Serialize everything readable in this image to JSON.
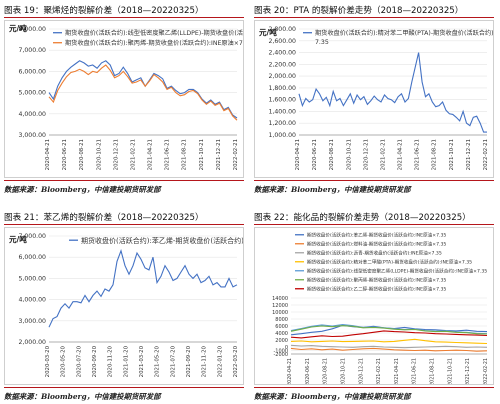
{
  "panels": [
    {
      "title": "图表 19：聚烯烃的裂解价差（2018—20220325）",
      "source": "数据来源：Bloomberg，中信建投期货研发部"
    },
    {
      "title": "图表 20：PTA 的裂解价差走势（2018—20220325）",
      "source": "数据来源：Bloomberg，中信建投期货研发部"
    },
    {
      "title": "图表 21：苯乙烯的裂解价差（2018—20220325）",
      "source": "数据来源：Bloomberg，中信建投期货研发部"
    },
    {
      "title": "图表 22：能化品的裂解价差走势（2018—20220325）",
      "source": "数据来源：Bloomberg，中信建投期货研发部"
    }
  ],
  "chart_data": [
    {
      "type": "line",
      "ylabel": "元/吨",
      "ylim": [
        3000,
        8000
      ],
      "yticks": [
        "8,000.00",
        "7,000.00",
        "6,000.00",
        "5,000.00",
        "4,000.00",
        "3,000.00"
      ],
      "xticks": [
        "2020-04-21",
        "2020-06-21",
        "2020-08-21",
        "2020-10-21",
        "2020-12-21",
        "2021-02-21",
        "2021-04-21",
        "2021-06-21",
        "2021-08-21",
        "2021-10-21",
        "2021-12-21",
        "2022-02-21"
      ],
      "series": [
        {
          "name": "期货收盘价(活跃合约):线型低密度聚乙烯(LLDPE)-期货收盘价(活跃合约):INE原油×7.35",
          "color": "#4472c4",
          "values": [
            5000,
            4700,
            5300,
            5700,
            6000,
            6200,
            6350,
            6500,
            6400,
            6250,
            6300,
            6150,
            6400,
            6500,
            6300,
            5800,
            5900,
            6200,
            5900,
            5500,
            5600,
            5700,
            5300,
            5600,
            5900,
            5800,
            5650,
            5200,
            5300,
            5100,
            4950,
            5000,
            5150,
            5150,
            5000,
            4700,
            4500,
            4650,
            4450,
            4550,
            4200,
            4300,
            3950,
            3800
          ]
        },
        {
          "name": "期货收盘价(活跃合约):聚丙烯-期货收盘价(活跃合约):INE原油×7.35",
          "color": "#ed7d31",
          "values": [
            4800,
            4550,
            5100,
            5450,
            5750,
            5950,
            6000,
            6100,
            6000,
            5850,
            6000,
            5950,
            6150,
            6300,
            6050,
            5700,
            5800,
            6000,
            5750,
            5450,
            5500,
            5600,
            5300,
            5550,
            5850,
            5700,
            5500,
            5150,
            5250,
            5000,
            4850,
            4900,
            5050,
            5100,
            4950,
            4650,
            4450,
            4600,
            4400,
            4500,
            4150,
            4250,
            3900,
            3700
          ]
        }
      ]
    },
    {
      "type": "line",
      "ylabel": "元/吨",
      "ylim": [
        1000,
        2800
      ],
      "yticks": [
        "2,800.00",
        "2,600.00",
        "2,400.00",
        "2,200.00",
        "2,000.00",
        "1,800.00",
        "1,600.00",
        "1,400.00",
        "1,200.00",
        "1,000.00"
      ],
      "xticks": [
        "2020-04-21",
        "2020-06-21",
        "2020-08-21",
        "2020-10-21",
        "2020-12-21",
        "2021-02-21",
        "2021-04-21",
        "2021-06-21",
        "2021-08-21",
        "2021-10-21",
        "2021-12-21",
        "2022-02-21"
      ],
      "series": [
        {
          "name": "期货收盘价(活跃合约):精对苯二甲酸(PTA)-期货收盘价(活跃合约):INE原油×7.35",
          "color": "#4472c4",
          "values": [
            1700,
            1500,
            1620,
            1560,
            1600,
            1780,
            1700,
            1580,
            1640,
            1500,
            1740,
            1580,
            1620,
            1500,
            1600,
            1700,
            1540,
            1680,
            1600,
            1650,
            1520,
            1580,
            1660,
            1600,
            1560,
            1680,
            1620,
            1600,
            1550,
            1650,
            1700,
            1560,
            1620,
            1900,
            2150,
            2400,
            1900,
            1650,
            1700,
            1560,
            1480,
            1500,
            1560,
            1420,
            1360,
            1350,
            1300,
            1240,
            1400,
            1200,
            1160,
            1300,
            1320,
            1200,
            1050,
            1050
          ]
        }
      ]
    },
    {
      "type": "line",
      "ylabel": "元/吨",
      "ylim": [
        2000,
        7000
      ],
      "yticks": [
        "7,000.00",
        "6,000.00",
        "5,000.00",
        "4,000.00",
        "3,000.00",
        "2,000.00"
      ],
      "xticks": [
        "2020-03-20",
        "2020-05-20",
        "2020-07-20",
        "2020-09-20",
        "2020-11-20",
        "2021-01-20",
        "2021-03-20",
        "2021-05-20",
        "2021-07-20",
        "2021-09-20",
        "2021-11-20",
        "2022-01-20",
        "2022-03-20"
      ],
      "series": [
        {
          "name": "期货收盘价(活跃合约):苯乙烯-期货收盘价(活跃合约):INE原油×7.35",
          "color": "#4472c4",
          "values": [
            2700,
            3100,
            3200,
            3600,
            3800,
            3600,
            3900,
            3900,
            3850,
            4200,
            3900,
            4200,
            4400,
            4150,
            4500,
            4400,
            4700,
            5800,
            6300,
            5600,
            5200,
            5600,
            6200,
            5900,
            5500,
            5400,
            6000,
            4800,
            5100,
            5600,
            5300,
            4900,
            5000,
            5300,
            5600,
            5200,
            5000,
            5200,
            4800,
            4900,
            5100,
            4700,
            4800,
            4600,
            4600,
            5000,
            4600,
            4700
          ]
        }
      ]
    },
    {
      "type": "line",
      "ylim": [
        -2000,
        14000
      ],
      "yticks": [
        "14000",
        "12000",
        "10000",
        "8000",
        "6000",
        "4000",
        "2000",
        "0",
        "-1000",
        "-2000"
      ],
      "xticks": [
        "2020-04-21",
        "2020-06-21",
        "2020-08-21",
        "2020-10-21",
        "2020-12-21",
        "2021-02-21",
        "2021-04-21",
        "2021-06-21",
        "2021-08-21",
        "2021-10-21",
        "2021-12-21",
        "2022-02-21"
      ],
      "series": [
        {
          "name": "期货收盘价(活跃合约):苯乙烯-期货收盘价(活跃合约):INE原油×7.35",
          "color": "#4472c4",
          "values": [
            3500,
            3800,
            4200,
            4500,
            5200,
            6200,
            5800,
            5600,
            5900,
            5500,
            5300,
            5600,
            5200,
            5000,
            4900,
            4700,
            4600,
            4800,
            4500,
            4400
          ]
        },
        {
          "name": "期货收盘价(活跃合约):燃料油-期货收盘价(活跃合约):INE原油×7.35",
          "color": "#ed7d31",
          "values": [
            -400,
            -700,
            -500,
            -800,
            -600,
            -900,
            -700,
            -500,
            -400,
            -600,
            -800,
            -900,
            -1000,
            -900,
            -1100,
            -1000,
            -900,
            -1000,
            -1200,
            -1100
          ]
        },
        {
          "name": "期货收盘价(活跃合约):沥青-期货收盘价(活跃合约):INE原油×7.35",
          "color": "#a5a5a5",
          "values": [
            500,
            300,
            400,
            200,
            100,
            0,
            -100,
            100,
            200,
            0,
            -100,
            -200,
            -100,
            0,
            100,
            200,
            100,
            -100,
            0,
            -100
          ]
        },
        {
          "name": "期货收盘价(活跃合约):精对苯二甲酸(PTA)-期货收盘价(活跃合约):INE原油×7.35",
          "color": "#ffc000",
          "values": [
            1600,
            1700,
            1500,
            1600,
            1700,
            1550,
            1600,
            1650,
            1700,
            1500,
            1600,
            1900,
            2200,
            1800,
            1500,
            1400,
            1300,
            1200,
            1100,
            1000
          ]
        },
        {
          "name": "期货收盘价(活跃合约):线型低密度聚乙烯(LLDPE)-期货收盘价(活跃合约):INE原油×7.35",
          "color": "#5b9bd5",
          "values": [
            4700,
            5300,
            5900,
            6300,
            6000,
            6400,
            6100,
            5600,
            5700,
            5500,
            5200,
            5000,
            5100,
            4700,
            4500,
            4600,
            4300,
            4200,
            3900,
            3800
          ]
        },
        {
          "name": "期货收盘价(活跃合约):聚丙烯-期货收盘价(活跃合约):INE原油×7.35",
          "color": "#70ad47",
          "values": [
            4500,
            5100,
            5700,
            6000,
            5800,
            6100,
            5900,
            5500,
            5600,
            5400,
            5100,
            4900,
            5000,
            4600,
            4400,
            4500,
            4200,
            4100,
            3800,
            3700
          ]
        },
        {
          "name": "期货收盘价(活跃合约):乙二醇-期货收盘价(活跃合约):INE原油×7.35",
          "color": "#c00000",
          "values": [
            2800,
            2600,
            2900,
            3200,
            3000,
            3100,
            3500,
            3800,
            4200,
            4600,
            4400,
            4300,
            4100,
            4000,
            3800,
            3700,
            3600,
            3500,
            3400,
            3300
          ]
        }
      ]
    }
  ]
}
